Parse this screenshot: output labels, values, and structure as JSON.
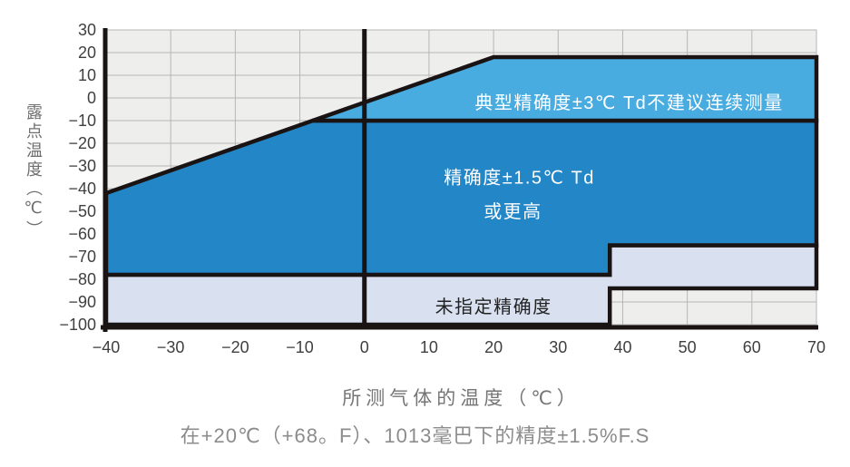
{
  "chart_data": {
    "type": "area",
    "title": "",
    "xlabel": "所测气体的温度（℃）",
    "ylabel": "露点温度（℃）",
    "caption": "在+20℃（+68。F）、1013毫巴下的精度±1.5%F.S",
    "xlim": [
      -40,
      70
    ],
    "ylim": [
      -100,
      30
    ],
    "x_ticks": [
      -40,
      -30,
      -20,
      -10,
      0,
      10,
      20,
      30,
      40,
      50,
      60,
      70
    ],
    "y_ticks": [
      30,
      20,
      10,
      0,
      -10,
      -20,
      -30,
      -40,
      -50,
      -60,
      -70,
      -80,
      -90,
      -100
    ],
    "grid": true,
    "zero_axis_line": true,
    "legend_position": "none",
    "colors": {
      "plot_bg": "#eeeeec",
      "grid_line": "#b6b6b4",
      "border": "#1a1313",
      "tick_text": "#3f3f3f",
      "axis_title_text": "#757575",
      "caption_text": "#8c8c8c"
    },
    "regions": [
      {
        "name": "unspecified-accuracy",
        "color": "#d9e0f0",
        "points": [
          [
            -40,
            -78
          ],
          [
            38,
            -78
          ],
          [
            38,
            -65
          ],
          [
            70,
            -65
          ],
          [
            70,
            -84
          ],
          [
            38,
            -84
          ],
          [
            38,
            -100
          ],
          [
            -40,
            -100
          ]
        ]
      },
      {
        "name": "high-accuracy",
        "color": "#2386c7",
        "points": [
          [
            -40,
            -42
          ],
          [
            -8,
            -10
          ],
          [
            70,
            -10
          ],
          [
            70,
            -65
          ],
          [
            38,
            -65
          ],
          [
            38,
            -78
          ],
          [
            -40,
            -78
          ]
        ]
      },
      {
        "name": "typical-accuracy",
        "color": "#48ace1",
        "points": [
          [
            -8,
            -10
          ],
          [
            20,
            18
          ],
          [
            70,
            18
          ],
          [
            70,
            -10
          ]
        ]
      }
    ],
    "annotations": [
      {
        "region": "typical-accuracy",
        "text": "典型精确度±3℃ Td不建议连续测量",
        "x": 41,
        "y": -2,
        "color": "#ffffff",
        "size": 20
      },
      {
        "region": "high-accuracy",
        "text": "精确度±1.5℃ Td",
        "x": 24,
        "y": -35,
        "color": "#ffffff",
        "size": 20
      },
      {
        "region": "high-accuracy",
        "text": "或更高",
        "x": 23,
        "y": -50,
        "color": "#ffffff",
        "size": 20
      },
      {
        "region": "unspecified-accuracy",
        "text": "未指定精确度",
        "x": 20,
        "y": -92,
        "color": "#222222",
        "size": 20
      }
    ]
  }
}
